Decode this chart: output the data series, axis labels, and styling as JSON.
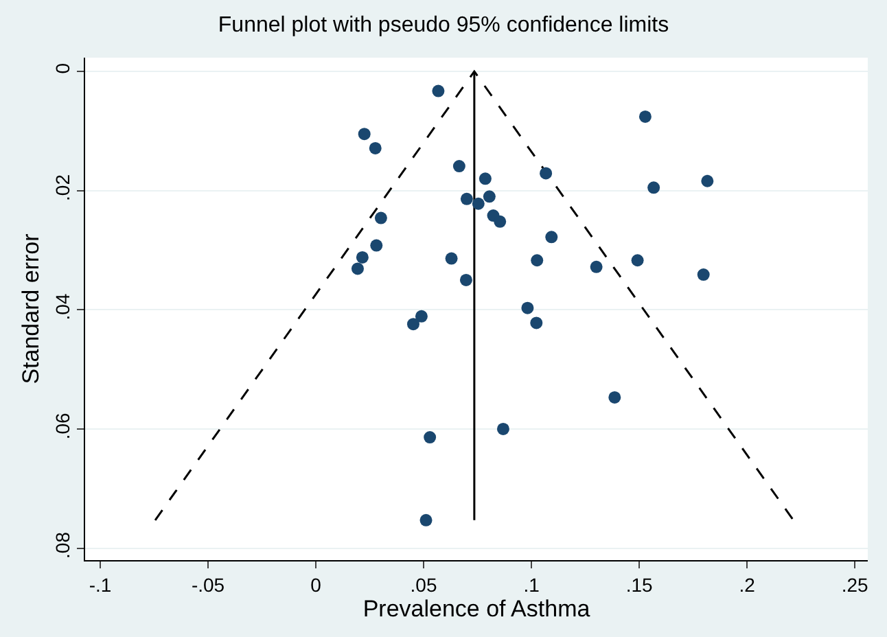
{
  "chart_data": {
    "type": "scatter",
    "title": "Funnel plot with pseudo 95% confidence limits",
    "xlabel": "Prevalence of Asthma",
    "ylabel": "Standard error",
    "xlim": [
      -0.107,
      0.256
    ],
    "ylim": [
      0.082,
      -0.0023
    ],
    "xticks": [
      {
        "value": -0.1,
        "label": "-.1"
      },
      {
        "value": -0.05,
        "label": "-.05"
      },
      0,
      {
        "value": 0.05,
        "label": ".05"
      },
      {
        "value": 0.1,
        "label": ".1"
      },
      {
        "value": 0.15,
        "label": ".15"
      },
      {
        "value": 0.2,
        "label": ".2"
      },
      {
        "value": 0.25,
        "label": ".25"
      }
    ],
    "yticks": [
      0,
      {
        "value": 0.02,
        "label": ".02"
      },
      {
        "value": 0.04,
        "label": ".04"
      },
      {
        "value": 0.06,
        "label": ".06"
      },
      {
        "value": 0.08,
        "label": ".08"
      }
    ],
    "grid": "y",
    "series": [
      {
        "type": "line",
        "color": "#000000",
        "line_style": "dashed",
        "marker": "none",
        "x": [
          -0.0745,
          0.0735,
          0.2215
        ],
        "values": [
          0.0753,
          0,
          0.0753
        ]
      },
      {
        "type": "line",
        "color": "#000000",
        "line_style": "solid",
        "marker": "none",
        "x": [
          0.0735,
          0.0735
        ],
        "values": [
          0,
          0.0753
        ]
      },
      {
        "color": "#1a476f",
        "marker": "circle",
        "x": [
          0.0568,
          0.1528,
          0.0225,
          0.0276,
          0.0665,
          0.1067,
          0.0786,
          0.1816,
          0.1567,
          0.07,
          0.0805,
          0.0754,
          0.0823,
          0.0854,
          0.0302,
          0.1093,
          0.0281,
          0.0216,
          0.0629,
          0.1026,
          0.1301,
          0.1492,
          0.0194,
          0.1798,
          0.0697,
          0.0982,
          0.049,
          0.0452,
          0.1023,
          0.1386,
          0.0869,
          0.0529,
          0.0511
        ],
        "values": [
          0.0033,
          0.0076,
          0.0105,
          0.0129,
          0.0159,
          0.0171,
          0.018,
          0.0184,
          0.0195,
          0.0214,
          0.021,
          0.0222,
          0.0242,
          0.0252,
          0.0246,
          0.0278,
          0.0292,
          0.0312,
          0.0314,
          0.0317,
          0.0328,
          0.0317,
          0.0331,
          0.0341,
          0.035,
          0.0397,
          0.0411,
          0.0424,
          0.0422,
          0.0547,
          0.06,
          0.0614,
          0.0753
        ]
      }
    ]
  }
}
